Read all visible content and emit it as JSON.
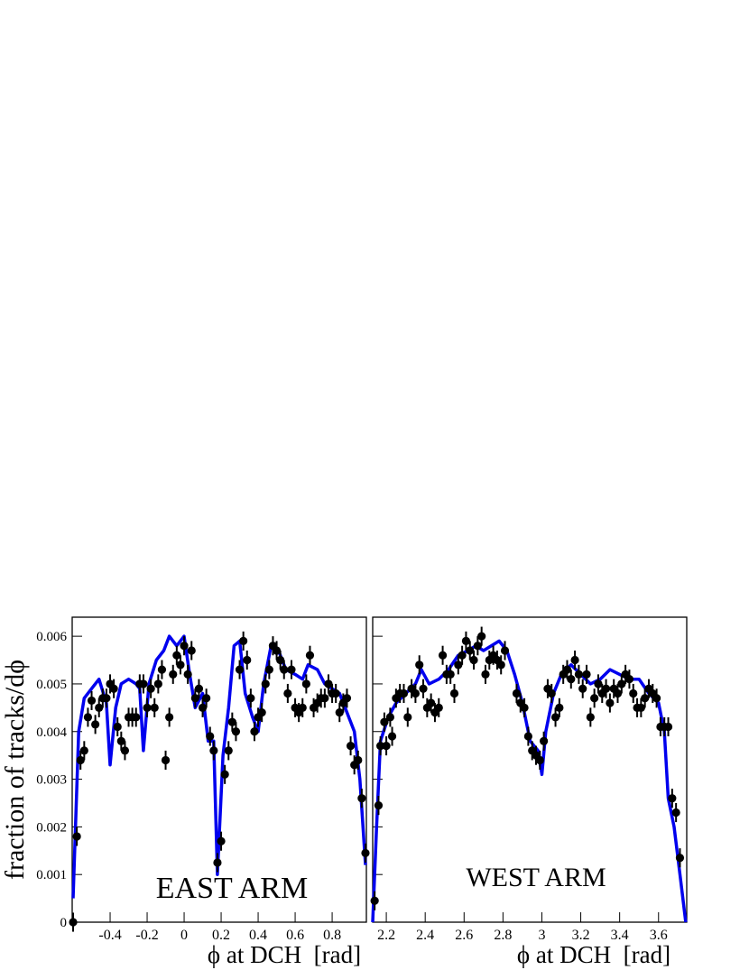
{
  "chart_data": [
    {
      "type": "scatter",
      "ylabel": "fraction of tracks/dϕ",
      "xlabel": "ϕ at DCH  [rad]",
      "annotation": "EAST ARM",
      "xlim": [
        -0.605,
        0.985
      ],
      "ylim": [
        0,
        0.0064
      ],
      "xticks": [
        -0.4,
        -0.2,
        0,
        0.2,
        0.4,
        0.6,
        0.8
      ],
      "yticks": [
        0,
        0.001,
        0.002,
        0.003,
        0.004,
        0.005,
        0.006
      ],
      "series": [
        {
          "type": "line",
          "color": "#0000ee",
          "x": [
            -0.6,
            -0.57,
            -0.54,
            -0.5,
            -0.46,
            -0.42,
            -0.4,
            -0.37,
            -0.34,
            -0.3,
            -0.26,
            -0.24,
            -0.22,
            -0.19,
            -0.15,
            -0.11,
            -0.08,
            -0.04,
            0.0,
            0.03,
            0.06,
            0.1,
            0.13,
            0.16,
            0.18,
            0.21,
            0.24,
            0.27,
            0.3,
            0.33,
            0.37,
            0.4,
            0.43,
            0.47,
            0.51,
            0.55,
            0.6,
            0.64,
            0.67,
            0.72,
            0.76,
            0.8,
            0.84,
            0.88,
            0.92,
            0.95,
            0.98
          ],
          "values": [
            0.0005,
            0.004,
            0.0047,
            0.0049,
            0.0051,
            0.0046,
            0.0033,
            0.0045,
            0.005,
            0.0051,
            0.005,
            0.0049,
            0.0036,
            0.005,
            0.0055,
            0.0057,
            0.006,
            0.0058,
            0.006,
            0.0052,
            0.0045,
            0.0048,
            0.0038,
            0.0038,
            0.001,
            0.0035,
            0.0045,
            0.0058,
            0.0059,
            0.0048,
            0.0043,
            0.004,
            0.005,
            0.0058,
            0.0057,
            0.0053,
            0.0052,
            0.0051,
            0.0054,
            0.0053,
            0.005,
            0.0049,
            0.0048,
            0.0044,
            0.004,
            0.003,
            0.0012
          ]
        },
        {
          "type": "errorbar",
          "color": "#000000",
          "yerr": 0.0002,
          "x": [
            -0.6,
            -0.58,
            -0.56,
            -0.54,
            -0.52,
            -0.5,
            -0.48,
            -0.46,
            -0.44,
            -0.42,
            -0.4,
            -0.38,
            -0.36,
            -0.34,
            -0.32,
            -0.3,
            -0.28,
            -0.26,
            -0.24,
            -0.22,
            -0.2,
            -0.18,
            -0.16,
            -0.14,
            -0.12,
            -0.1,
            -0.08,
            -0.06,
            -0.04,
            -0.02,
            0.0,
            0.02,
            0.04,
            0.06,
            0.08,
            0.1,
            0.12,
            0.14,
            0.16,
            0.18,
            0.2,
            0.22,
            0.24,
            0.26,
            0.28,
            0.3,
            0.32,
            0.34,
            0.36,
            0.38,
            0.4,
            0.42,
            0.44,
            0.46,
            0.48,
            0.5,
            0.52,
            0.54,
            0.56,
            0.58,
            0.6,
            0.62,
            0.64,
            0.66,
            0.68,
            0.7,
            0.72,
            0.74,
            0.76,
            0.78,
            0.8,
            0.82,
            0.84,
            0.86,
            0.88,
            0.9,
            0.92,
            0.94,
            0.96,
            0.98
          ],
          "values": [
            0.0,
            0.0018,
            0.0034,
            0.0036,
            0.0043,
            0.00465,
            0.00415,
            0.0045,
            0.0047,
            0.0047,
            0.005,
            0.0049,
            0.0041,
            0.0038,
            0.0036,
            0.0043,
            0.0043,
            0.0043,
            0.005,
            0.005,
            0.0045,
            0.0049,
            0.0045,
            0.005,
            0.0053,
            0.0034,
            0.0043,
            0.0052,
            0.0056,
            0.0054,
            0.0058,
            0.0052,
            0.0057,
            0.0047,
            0.0049,
            0.0045,
            0.0047,
            0.0039,
            0.0036,
            0.00125,
            0.0017,
            0.0031,
            0.0036,
            0.0042,
            0.004,
            0.0053,
            0.0059,
            0.0055,
            0.0047,
            0.004,
            0.0043,
            0.0044,
            0.005,
            0.0053,
            0.0058,
            0.0057,
            0.0055,
            0.0053,
            0.0048,
            0.0053,
            0.0045,
            0.0044,
            0.0045,
            0.005,
            0.0056,
            0.0045,
            0.0046,
            0.0047,
            0.0047,
            0.005,
            0.0048,
            0.0048,
            0.0044,
            0.0046,
            0.0047,
            0.0037,
            0.0033,
            0.0034,
            0.0026,
            0.00145
          ]
        }
      ]
    },
    {
      "type": "scatter",
      "xlabel": "ϕ at DCH  [rad]",
      "annotation": "WEST ARM",
      "xlim": [
        2.13,
        3.745
      ],
      "ylim": [
        0,
        0.0064
      ],
      "xticks": [
        2.2,
        2.4,
        2.6,
        2.8,
        3,
        3.2,
        3.4,
        3.6
      ],
      "yticks": [
        0,
        0.001,
        0.002,
        0.003,
        0.004,
        0.005,
        0.006
      ],
      "series": [
        {
          "type": "line",
          "color": "#0000ee",
          "x": [
            2.13,
            2.15,
            2.17,
            2.21,
            2.25,
            2.3,
            2.35,
            2.38,
            2.42,
            2.47,
            2.52,
            2.57,
            2.62,
            2.66,
            2.7,
            2.74,
            2.78,
            2.82,
            2.86,
            2.9,
            2.94,
            2.98,
            3.0,
            3.02,
            3.06,
            3.1,
            3.15,
            3.2,
            3.25,
            3.3,
            3.35,
            3.4,
            3.45,
            3.5,
            3.55,
            3.6,
            3.63,
            3.65,
            3.68,
            3.71,
            3.74
          ],
          "values": [
            0.0,
            0.002,
            0.0038,
            0.0043,
            0.0046,
            0.0048,
            0.005,
            0.0053,
            0.005,
            0.0051,
            0.0053,
            0.0056,
            0.0057,
            0.0058,
            0.0057,
            0.0058,
            0.0059,
            0.0057,
            0.0052,
            0.0046,
            0.0038,
            0.0036,
            0.0031,
            0.004,
            0.0048,
            0.0052,
            0.0054,
            0.0052,
            0.005,
            0.0051,
            0.0053,
            0.0052,
            0.0051,
            0.0051,
            0.0048,
            0.0046,
            0.004,
            0.0026,
            0.002,
            0.001,
            0.0
          ]
        },
        {
          "type": "errorbar",
          "color": "#000000",
          "yerr": 0.0002,
          "x": [
            2.14,
            2.16,
            2.17,
            2.19,
            2.2,
            2.22,
            2.23,
            2.25,
            2.27,
            2.29,
            2.31,
            2.33,
            2.35,
            2.37,
            2.39,
            2.41,
            2.43,
            2.45,
            2.47,
            2.49,
            2.51,
            2.53,
            2.55,
            2.57,
            2.59,
            2.61,
            2.63,
            2.65,
            2.67,
            2.69,
            2.71,
            2.73,
            2.75,
            2.77,
            2.79,
            2.81,
            2.87,
            2.89,
            2.91,
            2.93,
            2.95,
            2.97,
            2.99,
            3.01,
            3.03,
            3.05,
            3.07,
            3.09,
            3.11,
            3.13,
            3.15,
            3.17,
            3.19,
            3.21,
            3.23,
            3.25,
            3.27,
            3.29,
            3.31,
            3.33,
            3.35,
            3.37,
            3.39,
            3.41,
            3.43,
            3.45,
            3.47,
            3.49,
            3.51,
            3.53,
            3.55,
            3.57,
            3.59,
            3.61,
            3.63,
            3.65,
            3.67,
            3.69,
            3.71
          ],
          "values": [
            0.00045,
            0.00245,
            0.0037,
            0.0042,
            0.0037,
            0.0043,
            0.0039,
            0.0047,
            0.0048,
            0.0048,
            0.0043,
            0.0049,
            0.0048,
            0.0054,
            0.0049,
            0.0045,
            0.0046,
            0.0044,
            0.0045,
            0.0056,
            0.0052,
            0.0052,
            0.0048,
            0.0054,
            0.0056,
            0.0059,
            0.0057,
            0.0055,
            0.0058,
            0.006,
            0.0052,
            0.0055,
            0.0056,
            0.0055,
            0.0054,
            0.0057,
            0.0048,
            0.0046,
            0.0045,
            0.0039,
            0.0036,
            0.0035,
            0.0034,
            0.0038,
            0.0049,
            0.0048,
            0.0043,
            0.0045,
            0.0052,
            0.0053,
            0.0051,
            0.0055,
            0.0052,
            0.0049,
            0.0052,
            0.0043,
            0.0047,
            0.005,
            0.0048,
            0.0049,
            0.0046,
            0.0049,
            0.0048,
            0.005,
            0.0052,
            0.0051,
            0.0048,
            0.0045,
            0.0045,
            0.0047,
            0.0049,
            0.0048,
            0.0047,
            0.0041,
            0.0041,
            0.0041,
            0.0026,
            0.0023,
            0.00135
          ]
        }
      ]
    }
  ]
}
